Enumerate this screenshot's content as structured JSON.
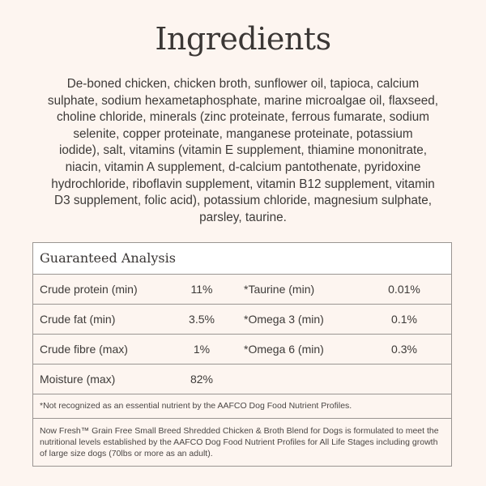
{
  "title": "Ingredients",
  "ingredients_lines": [
    "De-boned chicken, chicken broth, sunflower oil, tapioca, calcium",
    "sulphate, sodium hexametaphosphate, marine microalgae oil, flaxseed,",
    "choline chloride, minerals (zinc proteinate, ferrous fumarate, sodium",
    "selenite, copper proteinate, manganese proteinate, potassium",
    "iodide), salt, vitamins (vitamin E supplement, thiamine mononitrate,",
    "niacin, vitamin A supplement, d-calcium pantothenate, pyridoxine",
    "hydrochloride, riboflavin supplement, vitamin B12 supplement, vitamin",
    "D3 supplement, folic acid), potassium chloride, magnesium sulphate,",
    "parsley, taurine."
  ],
  "analysis": {
    "heading": "Guaranteed Analysis",
    "rows": [
      {
        "name": "Crude protein (min)",
        "value": "11%",
        "name2": "*Taurine (min)",
        "value2": "0.01%"
      },
      {
        "name": "Crude fat (min)",
        "value": "3.5%",
        "name2": "*Omega 3 (min)",
        "value2": "0.1%"
      },
      {
        "name": "Crude fibre (max)",
        "value": "1%",
        "name2": "*Omega 6 (min)",
        "value2": "0.3%"
      },
      {
        "name": "Moisture (max)",
        "value": "82%",
        "name2": "",
        "value2": ""
      }
    ],
    "footnote": "*Not recognized as an essential nutrient by the AAFCO Dog Food Nutrient Profiles.",
    "statement": "Now Fresh™ Grain Free Small Breed Shredded Chicken & Broth Blend for Dogs is formulated to meet the nutritional levels established by the AAFCO Dog Food Nutrient Profiles for All Life Stages including growth of large size dogs (70lbs or more as an adult)."
  }
}
